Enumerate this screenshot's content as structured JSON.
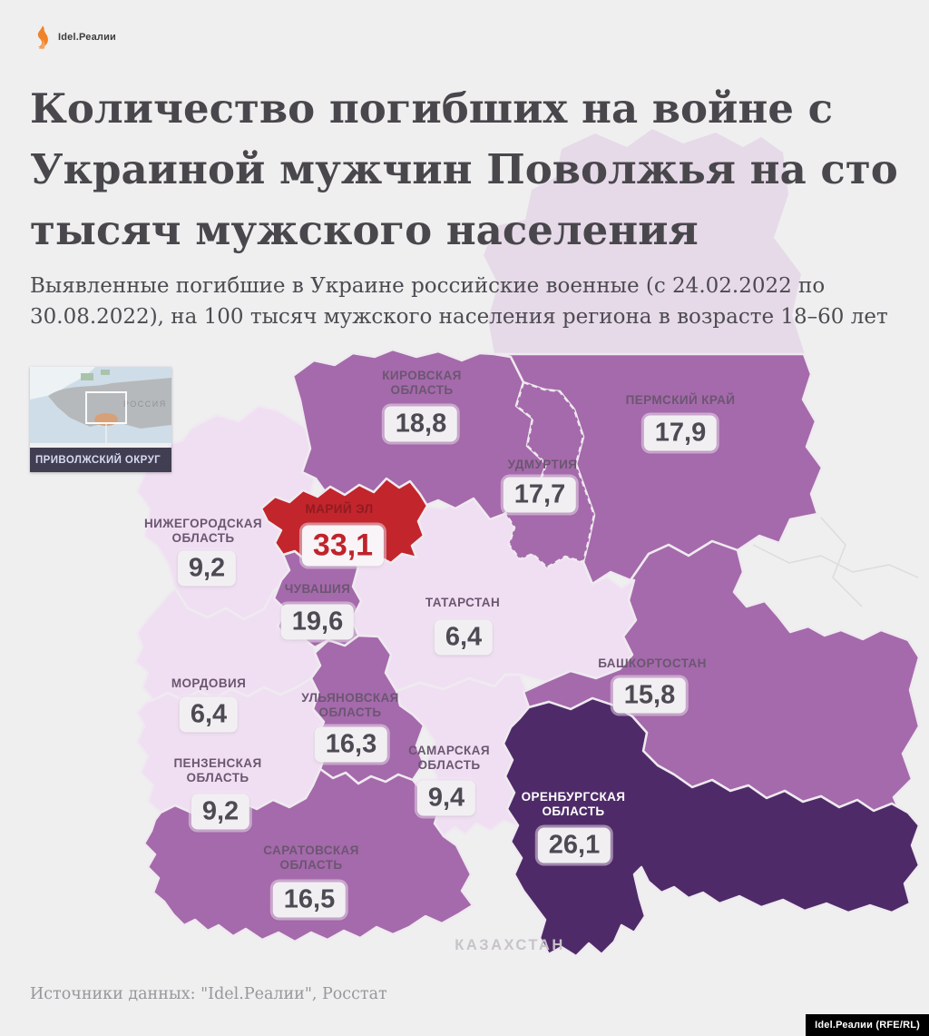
{
  "meta": {
    "brand": "Idel.Реалии",
    "attribution": "Idel.Реалии (RFE/RL)"
  },
  "header": {
    "title_lines": [
      "Количество погибших на войне с",
      "Украиной мужчин Поволжья на сто",
      "тысяч мужского населения"
    ],
    "subtitle_lines": [
      "Выявленные погибшие в Украине российские военные (с 24.02.2022 по",
      "30.08.2022), на 100 тысяч мужского населения региона в возрасте 18–60 лет"
    ]
  },
  "inset": {
    "country": "РОССИЯ",
    "district": "ПРИВОЛЖСКИЙ ОКРУГ"
  },
  "map": {
    "neighbor": "КАЗАХСТАН",
    "regions": [
      {
        "id": "kirov",
        "lines": [
          "КИРОВСКАЯ",
          "ОБЛАСТЬ"
        ],
        "value": "18,8",
        "num": 18.8,
        "shade": "medium"
      },
      {
        "id": "perm",
        "lines": [
          "ПЕРМСКИЙ КРАЙ"
        ],
        "value": "17,9",
        "num": 17.9,
        "shade": "medium"
      },
      {
        "id": "udmurtia",
        "lines": [
          "УДМУРТИЯ"
        ],
        "value": "17,7",
        "num": 17.7,
        "shade": "medium"
      },
      {
        "id": "nizhny",
        "lines": [
          "НИЖЕГОРОДСКАЯ",
          "ОБЛАСТЬ"
        ],
        "value": "9,2",
        "num": 9.2,
        "shade": "light"
      },
      {
        "id": "mariel",
        "lines": [
          "МАРИЙ ЭЛ"
        ],
        "value": "33,1",
        "num": 33.1,
        "shade": "red"
      },
      {
        "id": "chuvashia",
        "lines": [
          "ЧУВАШИЯ"
        ],
        "value": "19,6",
        "num": 19.6,
        "shade": "medium"
      },
      {
        "id": "tatarstan",
        "lines": [
          "ТАТАРСТАН"
        ],
        "value": "6,4",
        "num": 6.4,
        "shade": "light"
      },
      {
        "id": "bashkortostan",
        "lines": [
          "БАШКОРТОСТАН"
        ],
        "value": "15,8",
        "num": 15.8,
        "shade": "medium"
      },
      {
        "id": "mordovia",
        "lines": [
          "МОРДОВИЯ"
        ],
        "value": "6,4",
        "num": 6.4,
        "shade": "light"
      },
      {
        "id": "ulyanovsk",
        "lines": [
          "УЛЬЯНОВСКАЯ",
          "ОБЛАСТЬ"
        ],
        "value": "16,3",
        "num": 16.3,
        "shade": "medium"
      },
      {
        "id": "penza",
        "lines": [
          "ПЕНЗЕНСКАЯ",
          "ОБЛАСТЬ"
        ],
        "value": "9,2",
        "num": 9.2,
        "shade": "light"
      },
      {
        "id": "samara",
        "lines": [
          "САМАРСКАЯ",
          "ОБЛАСТЬ"
        ],
        "value": "9,4",
        "num": 9.4,
        "shade": "light"
      },
      {
        "id": "saratov",
        "lines": [
          "САРАТОВСКАЯ",
          "ОБЛАСТЬ"
        ],
        "value": "16,5",
        "num": 16.5,
        "shade": "medium"
      },
      {
        "id": "orenburg",
        "lines": [
          "ОРЕНБУРГСКАЯ",
          "ОБЛАСТЬ"
        ],
        "value": "26,1",
        "num": 26.1,
        "shade": "dark"
      }
    ]
  },
  "footer": {
    "source": "Источники данных: \"Idel.Реалии\", Росстат"
  },
  "colors": {
    "background": "#efeff0",
    "region_light": "#f0dff2",
    "region_medium": "#a56aab",
    "region_dark": "#4e2b68",
    "region_red": "#c2252b",
    "badge_bg": "#f2eff2",
    "inset_bar": "#413e52",
    "logo_orange": "#f08229"
  },
  "chart_data": {
    "type": "choropleth",
    "title": "Количество погибших на войне с Украиной мужчин Поволжья на сто тысяч мужского населения",
    "unit": "погибших на 100 тысяч мужского населения 18–60 лет (24.02.2022–30.08.2022)",
    "categories": [
      "Кировская область",
      "Пермский край",
      "Удмуртия",
      "Нижегородская область",
      "Марий Эл",
      "Чувашия",
      "Татарстан",
      "Башкортостан",
      "Мордовия",
      "Ульяновская область",
      "Пензенская область",
      "Самарская область",
      "Саратовская область",
      "Оренбургская область"
    ],
    "values": [
      18.8,
      17.9,
      17.7,
      9.2,
      33.1,
      19.6,
      6.4,
      15.8,
      6.4,
      16.3,
      9.2,
      9.4,
      16.5,
      26.1
    ],
    "legend_position": "none"
  }
}
